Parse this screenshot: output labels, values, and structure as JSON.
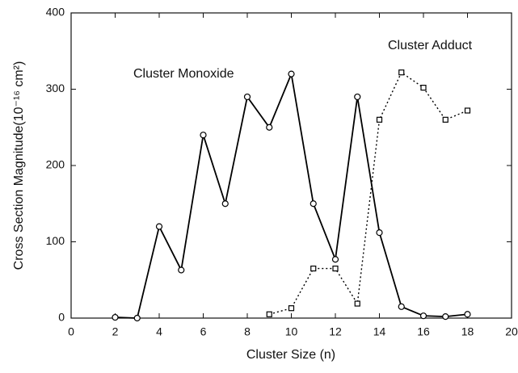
{
  "chart_data": {
    "type": "line",
    "xlabel": "Cluster Size (n)",
    "ylabel": "Cross Section Magnitude(10⁻¹⁶ cm²)",
    "xlim": [
      0,
      20
    ],
    "xticks": [
      0,
      2,
      4,
      6,
      8,
      10,
      12,
      14,
      16,
      18,
      20
    ],
    "ylim": [
      0,
      400
    ],
    "yticks": [
      0,
      100,
      200,
      300,
      400
    ],
    "series": [
      {
        "name": "Cluster Monoxide",
        "color": "#000000",
        "dash": "solid",
        "marker": "circle",
        "x": [
          2,
          3,
          4,
          5,
          6,
          7,
          8,
          9,
          10,
          11,
          12,
          13,
          14,
          15,
          16,
          17,
          18
        ],
        "values": [
          1,
          0,
          120,
          63,
          240,
          150,
          290,
          250,
          320,
          150,
          77,
          290,
          112,
          15,
          3,
          2,
          5
        ]
      },
      {
        "name": "Cluster Adduct",
        "color": "#000000",
        "dash": "dotted",
        "marker": "square",
        "x": [
          9,
          10,
          11,
          12,
          13,
          14,
          15,
          16,
          17,
          18
        ],
        "values": [
          5,
          13,
          65,
          65,
          19,
          260,
          322,
          302,
          260,
          272
        ]
      }
    ]
  }
}
